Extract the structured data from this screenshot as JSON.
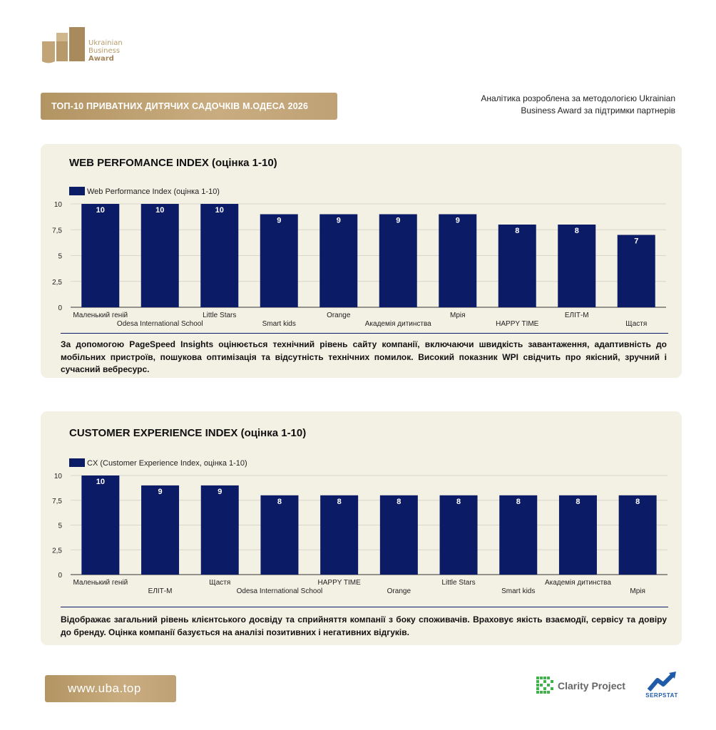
{
  "brand": {
    "line1": "Ukrainian",
    "line2": "Business",
    "line3": "Award",
    "gold": "#b39463"
  },
  "header": {
    "title": "ТОП-10 ПРИВАТНИХ ДИТЯЧИХ САДОЧКІВ М.ОДЕСА 2026",
    "note": "Аналітика розроблена за методологією Ukrainian Business Award за підтримки партнерів"
  },
  "colors": {
    "bar": "#0b1b66",
    "panel": "#f3f0e4",
    "grid": "#d9d6cc"
  },
  "panels": [
    {
      "title": "WEB PERFOMANCE INDEX (оцінка 1-10)",
      "description": "За допомогою PageSpeed Insights оцінюється технічний рівень сайту компанії, включаючи швидкість завантаження, адаптивність до мобільних пристроїв, пошукова оптимізація та відсутність технічних помилок. Високий показник WPI свідчить про якісний, зручний і сучасний вебресурс."
    },
    {
      "title": "CUSTOMER EXPERIENCE INDEX (оцінка 1-10)",
      "description": "Відображає загальний рівень клієнтського досвіду та сприйняття компанії з боку споживачів. Враховує якість взаємодії, сервісу та довіру до бренду. Оцінка компанії базується на аналізі позитивних і негативних відгуків."
    }
  ],
  "chart_data": [
    {
      "type": "bar",
      "title": "WEB PERFOMANCE INDEX (оцінка 1-10)",
      "categories": [
        "Маленький геній",
        "Odesa International School",
        "Little Stars",
        "Smart kids",
        "Orange",
        "Академія дитинства",
        "Мрія",
        "HAPPY TIME",
        "ЕЛІТ-М",
        "Щастя"
      ],
      "series": [
        {
          "name": "Web Performance Index (оцінка 1-10)",
          "values": [
            10,
            10,
            10,
            9,
            9,
            9,
            9,
            8,
            8,
            7
          ]
        }
      ],
      "yticks": [
        "0",
        "2,5",
        "5",
        "7,5",
        "10"
      ],
      "ylim": [
        0,
        10
      ],
      "legend": "top-left",
      "grid": true
    },
    {
      "type": "bar",
      "title": "CUSTOMER EXPERIENCE INDEX (оцінка 1-10)",
      "categories": [
        "Маленький геній",
        "ЕЛІТ-М",
        "Щастя",
        "Odesa International School",
        "HAPPY TIME",
        "Orange",
        "Little Stars",
        "Smart kids",
        "Академія дитинства",
        "Мрія"
      ],
      "series": [
        {
          "name": "CX (Customer Experience Index, оцінка 1-10)",
          "values": [
            10,
            9,
            9,
            8,
            8,
            8,
            8,
            8,
            8,
            8
          ]
        }
      ],
      "yticks": [
        "0",
        "2,5",
        "5",
        "7,5",
        "10"
      ],
      "ylim": [
        0,
        10
      ],
      "legend": "top-left",
      "grid": true
    }
  ],
  "footer": {
    "url": "www.uba.top",
    "partner1": "Clarity Project",
    "partner2": "SERPSTAT"
  }
}
